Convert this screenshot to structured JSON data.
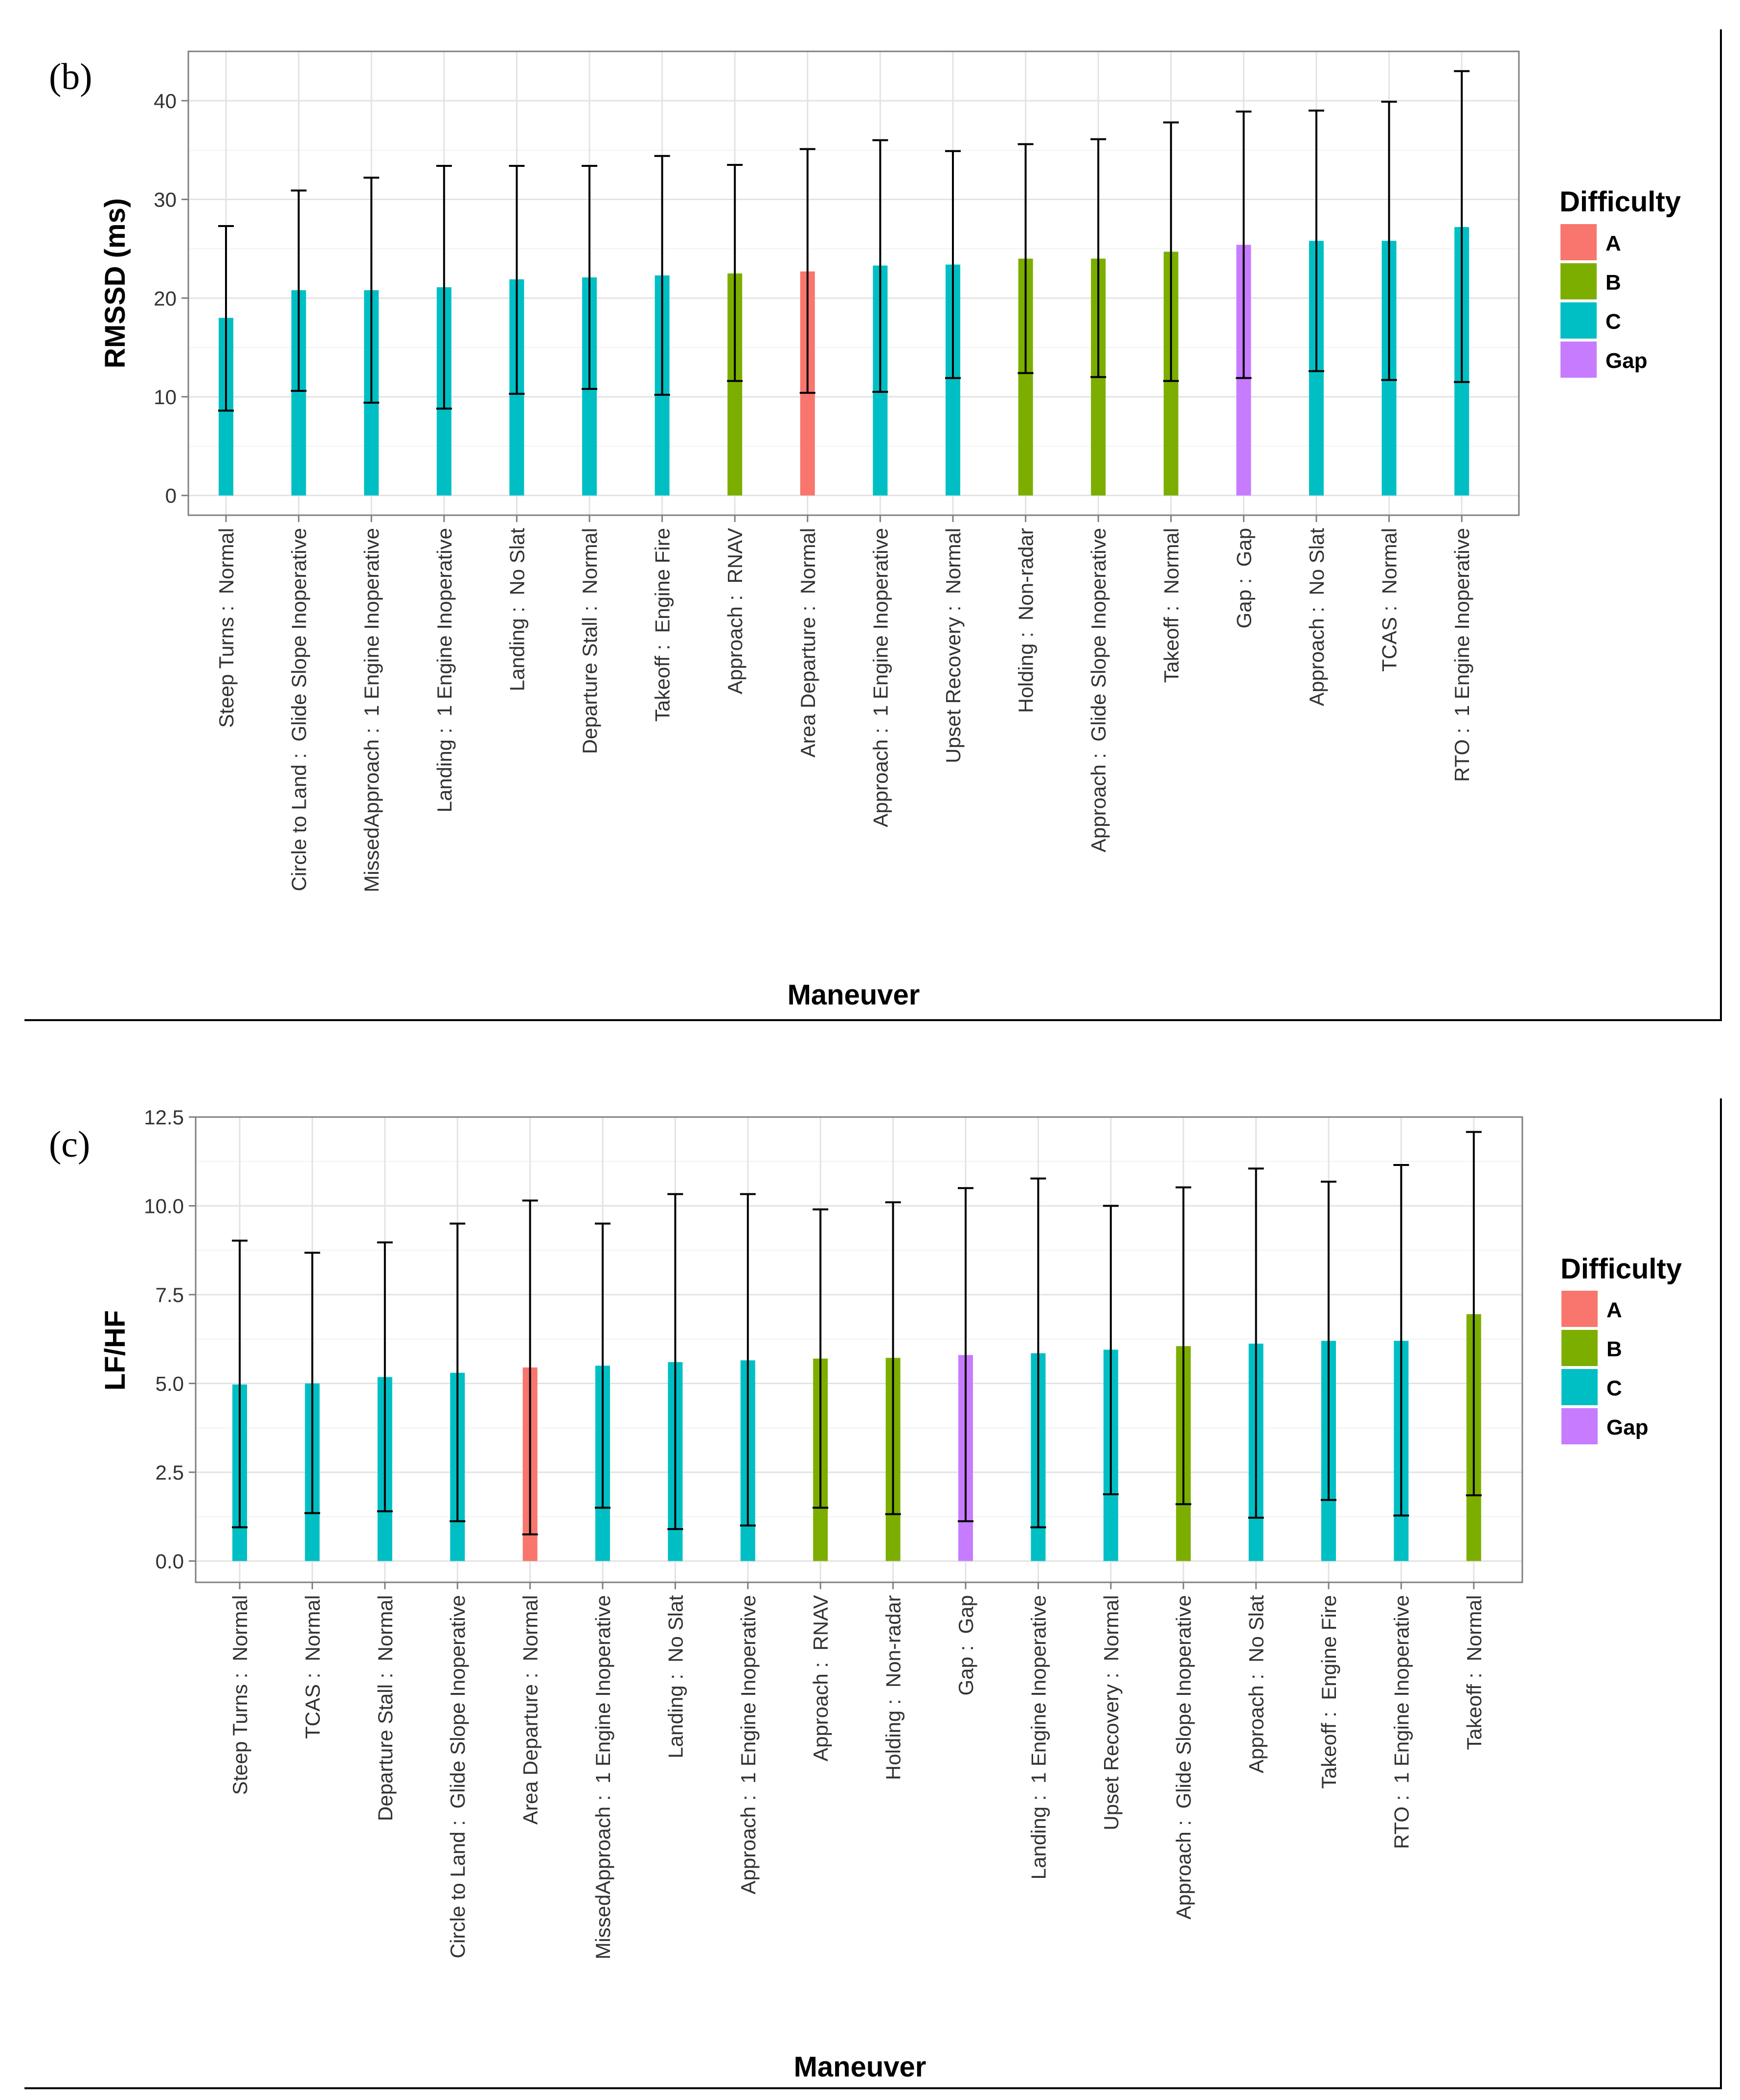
{
  "colors": {
    "A": "#F8766D",
    "B": "#7CAE00",
    "C": "#00BFC4",
    "Gap": "#C77CFF"
  },
  "chart_data": [
    {
      "type": "bar",
      "panel_label": "(b)",
      "title": "",
      "xlabel": "Maneuver",
      "ylabel": "RMSSD (ms)",
      "ylim": [
        -2,
        45
      ],
      "yticks": [
        0,
        10,
        20,
        30,
        40
      ],
      "ytick_labels": [
        "0",
        "10",
        "20",
        "30",
        "40"
      ],
      "grid": true,
      "legend": {
        "title": "Difficulty",
        "placement": "right",
        "entries": [
          "A",
          "B",
          "C",
          "Gap"
        ]
      },
      "categories": [
        "Steep Turns :  Normal",
        "Circle to Land :  Glide Slope Inoperative",
        "MissedApproach :  1 Engine Inoperative",
        "Landing :  1 Engine Inoperative",
        "Landing :  No Slat",
        "Departure Stall :  Normal",
        "Takeoff :  Engine Fire",
        "Approach :  RNAV",
        "Area Departure :  Normal",
        "Approach :  1 Engine Inoperative",
        "Upset Recovery :  Normal",
        "Holding :  Non-radar",
        "Approach :  Glide Slope Inoperative",
        "Takeoff :  Normal",
        "Gap :  Gap",
        "Approach :  No Slat",
        "TCAS :  Normal",
        "RTO :  1 Engine Inoperative"
      ],
      "values": [
        18.0,
        20.8,
        20.8,
        21.1,
        21.9,
        22.1,
        22.3,
        22.5,
        22.7,
        23.3,
        23.4,
        24.0,
        24.0,
        24.7,
        25.4,
        25.8,
        25.8,
        27.2
      ],
      "error_low": [
        8.6,
        10.6,
        9.4,
        8.8,
        10.3,
        10.8,
        10.2,
        11.6,
        10.4,
        10.5,
        11.9,
        12.4,
        12.0,
        11.6,
        11.9,
        12.6,
        11.7,
        11.5
      ],
      "error_high": [
        27.3,
        30.9,
        32.2,
        33.4,
        33.4,
        33.4,
        34.4,
        33.5,
        35.1,
        36.0,
        34.9,
        35.6,
        36.1,
        37.8,
        38.9,
        39.0,
        39.9,
        43.0
      ],
      "difficulty": [
        "C",
        "C",
        "C",
        "C",
        "C",
        "C",
        "C",
        "B",
        "A",
        "C",
        "C",
        "B",
        "B",
        "B",
        "Gap",
        "C",
        "C",
        "C"
      ]
    },
    {
      "type": "bar",
      "panel_label": "(c)",
      "title": "",
      "xlabel": "Maneuver",
      "ylabel": "LF/HF",
      "ylim": [
        -0.6,
        12.5
      ],
      "yticks": [
        0,
        2.5,
        5,
        7.5,
        10,
        12.5
      ],
      "ytick_labels": [
        "0.0",
        "2.5",
        "5.0",
        "7.5",
        "10.0",
        "12.5"
      ],
      "grid": true,
      "legend": {
        "title": "Difficulty",
        "placement": "right",
        "entries": [
          "A",
          "B",
          "C",
          "Gap"
        ]
      },
      "categories": [
        "Steep Turns :  Normal",
        "TCAS :  Normal",
        "Departure Stall :  Normal",
        "Circle to Land :  Glide Slope Inoperative",
        "Area Departure :  Normal",
        "MissedApproach :  1 Engine Inoperative",
        "Landing :  No Slat",
        "Approach :  1 Engine Inoperative",
        "Approach :  RNAV",
        "Holding :  Non-radar",
        "Gap :  Gap",
        "Landing :  1 Engine Inoperative",
        "Upset Recovery :  Normal",
        "Approach :  Glide Slope Inoperative",
        "Approach :  No Slat",
        "Takeoff :  Engine Fire",
        "RTO :  1 Engine Inoperative",
        "Takeoff :  Normal"
      ],
      "values": [
        4.97,
        5.0,
        5.18,
        5.3,
        5.45,
        5.5,
        5.6,
        5.65,
        5.7,
        5.72,
        5.8,
        5.85,
        5.95,
        6.05,
        6.12,
        6.2,
        6.2,
        6.95
      ],
      "error_low": [
        0.95,
        1.35,
        1.4,
        1.12,
        0.75,
        1.5,
        0.9,
        1.0,
        1.5,
        1.32,
        1.12,
        0.95,
        1.88,
        1.6,
        1.22,
        1.72,
        1.28,
        1.85
      ],
      "error_high": [
        9.02,
        8.68,
        8.97,
        9.5,
        10.15,
        9.5,
        10.33,
        10.33,
        9.9,
        10.1,
        10.5,
        10.77,
        10.0,
        10.52,
        11.05,
        10.68,
        11.15,
        12.08
      ],
      "difficulty": [
        "C",
        "C",
        "C",
        "C",
        "A",
        "C",
        "C",
        "C",
        "B",
        "B",
        "Gap",
        "C",
        "C",
        "B",
        "C",
        "C",
        "C",
        "B"
      ]
    }
  ]
}
